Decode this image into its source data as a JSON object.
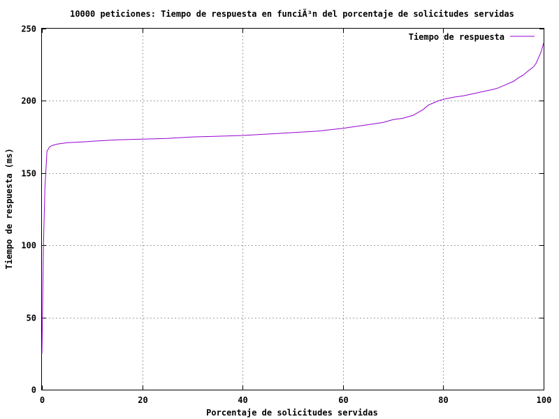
{
  "chart_data": {
    "type": "line",
    "title": "10000 peticiones: Tiempo de respuesta en funciÃ³n del porcentaje de solicitudes servidas",
    "xlabel": "Porcentaje de solicitudes servidas",
    "ylabel": "Tiempo de respuesta (ms)",
    "xlim": [
      0,
      100
    ],
    "ylim": [
      0,
      250
    ],
    "x_ticks": [
      "0",
      "20",
      "40",
      "60",
      "80",
      "100"
    ],
    "y_ticks": [
      "0",
      "50",
      "100",
      "150",
      "200",
      "250"
    ],
    "grid": true,
    "legend_position": "top-right",
    "series": [
      {
        "name": "Tiempo de respuesta",
        "color": "#9400d3",
        "x": [
          0,
          0.3,
          0.6,
          1,
          1.5,
          2,
          3,
          5,
          8,
          10,
          15,
          20,
          25,
          30,
          35,
          40,
          45,
          50,
          55,
          60,
          62,
          64,
          66,
          68,
          70,
          72,
          74,
          75,
          76,
          77,
          78,
          79,
          80,
          82,
          84,
          86,
          88,
          90,
          91,
          92,
          93,
          94,
          95,
          96,
          97,
          98,
          98.5,
          99,
          99.5,
          100
        ],
        "y": [
          25,
          100,
          140,
          165,
          168,
          169,
          170,
          171,
          171.5,
          172,
          173,
          173.5,
          174,
          175,
          175.5,
          176,
          177,
          178,
          179,
          181,
          182,
          183,
          184,
          185,
          187,
          188,
          190,
          192,
          194,
          197,
          198.5,
          200,
          201,
          202.5,
          203.5,
          205,
          206.5,
          208,
          209,
          210.5,
          212,
          213.5,
          216,
          218,
          221,
          223.5,
          226,
          230,
          234,
          240
        ]
      }
    ]
  }
}
